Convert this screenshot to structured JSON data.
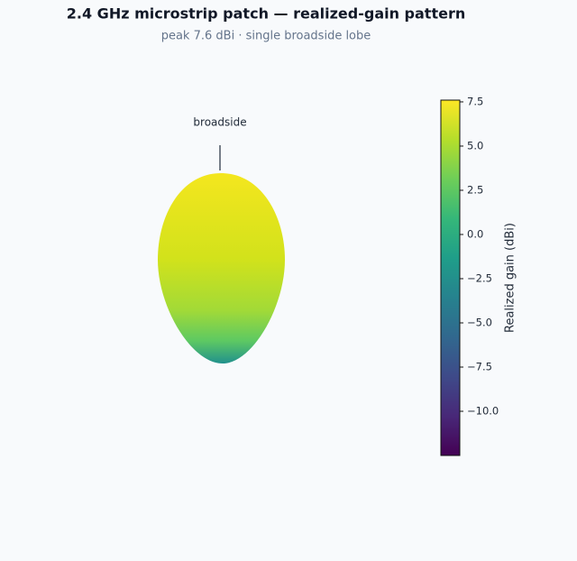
{
  "chart_data": {
    "type": "radiation-pattern-3d",
    "title": "2.4 GHz microstrip patch — realized-gain pattern",
    "subtitle": "peak 7.6 dBi · single broadside lobe",
    "annotation": "broadside",
    "colorbar_label": "Realized gain (dBi)",
    "colormap": "viridis",
    "clim": [
      -12.5,
      7.6
    ],
    "cticks": [
      7.5,
      {
        "value": 5,
        "label": "5.0"
      },
      2.5,
      {
        "value": 0,
        "label": "0.0"
      },
      {
        "value": -2.5,
        "label": "−2.5"
      },
      {
        "value": -5,
        "label": "−5.0"
      },
      {
        "value": -7.5,
        "label": "−7.5"
      },
      {
        "value": -10,
        "label": "−10.0"
      }
    ]
  }
}
